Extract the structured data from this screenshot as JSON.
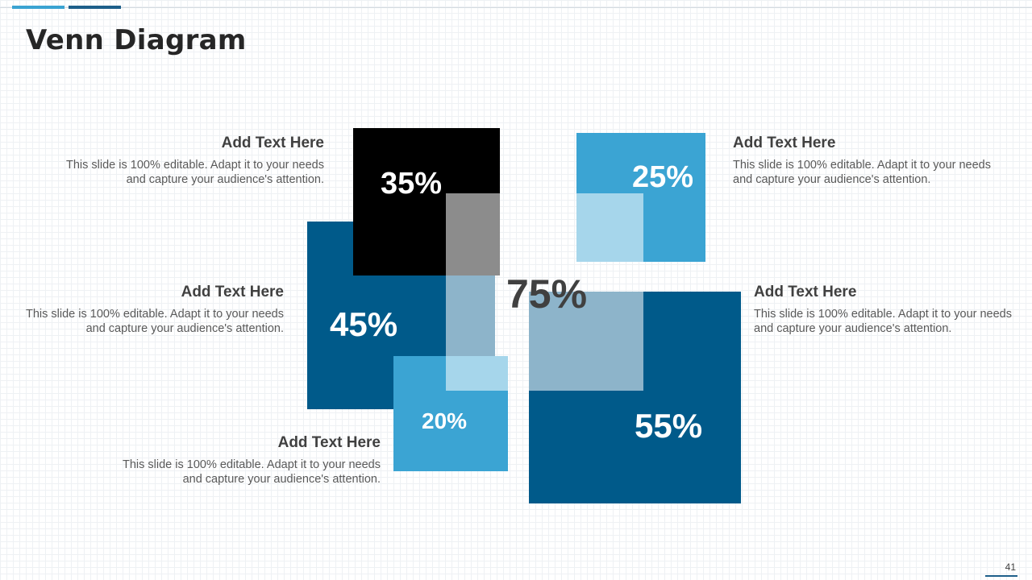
{
  "slide": {
    "title": "Venn Diagram",
    "page_number": "41"
  },
  "diagram": {
    "center_value": "75%",
    "squares": [
      {
        "id": "black",
        "value": "35%",
        "color": "#000000"
      },
      {
        "id": "dark-blue-left",
        "value": "45%",
        "color": "#005a8a"
      },
      {
        "id": "light-blue-small",
        "value": "20%",
        "color": "#3ba4d3"
      },
      {
        "id": "light-blue-top-right",
        "value": "25%",
        "color": "#3ba4d3"
      },
      {
        "id": "dark-blue-right",
        "value": "55%",
        "color": "#005a8a"
      }
    ],
    "overlap_colors": {
      "gray": "#8c8c8c",
      "pale_blue": "#a6d6eb",
      "gray_blue": "#8db4ca"
    }
  },
  "text_blocks": [
    {
      "heading": "Add Text Here",
      "body": "This slide is 100% editable. Adapt it to your needs and capture your audience's attention."
    },
    {
      "heading": "Add Text Here",
      "body": "This slide is 100% editable. Adapt it to your needs and capture your audience's attention."
    },
    {
      "heading": "Add Text Here",
      "body": "This slide is 100% editable. Adapt it to your needs and capture your audience's attention."
    },
    {
      "heading": "Add Text Here",
      "body": "This slide is 100% editable. Adapt it to your needs and capture your audience's attention."
    },
    {
      "heading": "Add Text Here",
      "body": "This slide is 100% editable. Adapt it to your needs and capture your audience's attention."
    }
  ]
}
